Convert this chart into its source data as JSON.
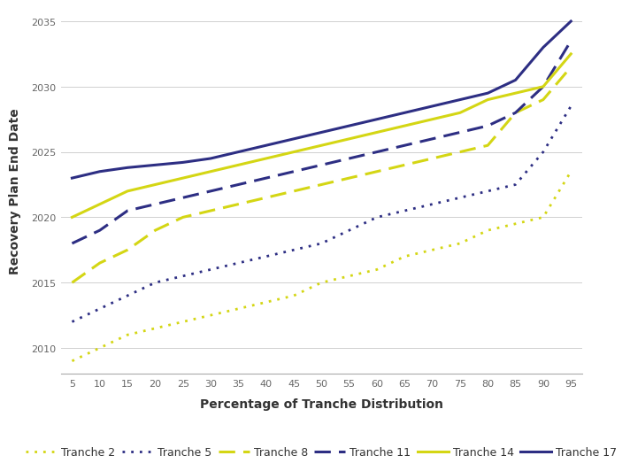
{
  "x": [
    5,
    10,
    15,
    20,
    25,
    30,
    35,
    40,
    45,
    50,
    55,
    60,
    65,
    70,
    75,
    80,
    85,
    90,
    95
  ],
  "tranche2": [
    2009,
    2010,
    2011,
    2011.5,
    2012,
    2012.5,
    2013,
    2013.5,
    2014,
    2015,
    2015.5,
    2016,
    2017,
    2017.5,
    2018,
    2019,
    2019.5,
    2020,
    2023.5
  ],
  "tranche5": [
    2012,
    2013,
    2014,
    2015,
    2015.5,
    2016,
    2016.5,
    2017,
    2017.5,
    2018,
    2019,
    2020,
    2020.5,
    2021,
    2021.5,
    2022,
    2022.5,
    2025,
    2028.5
  ],
  "tranche8": [
    2015,
    2016.5,
    2017.5,
    2019,
    2020,
    2020.5,
    2021,
    2021.5,
    2022,
    2022.5,
    2023,
    2023.5,
    2024,
    2024.5,
    2025,
    2025.5,
    2028,
    2029,
    2031.5
  ],
  "tranche11": [
    2018,
    2019,
    2020.5,
    2021,
    2021.5,
    2022,
    2022.5,
    2023,
    2023.5,
    2024,
    2024.5,
    2025,
    2025.5,
    2026,
    2026.5,
    2027,
    2028,
    2030,
    2033.5
  ],
  "tranche14": [
    2020,
    2021,
    2022,
    2022.5,
    2023,
    2023.5,
    2024,
    2024.5,
    2025,
    2025.5,
    2026,
    2026.5,
    2027,
    2027.5,
    2028,
    2029,
    2029.5,
    2030,
    2032.5
  ],
  "tranche17": [
    2023,
    2023.5,
    2023.8,
    2024,
    2024.2,
    2024.5,
    2025,
    2025.5,
    2026,
    2026.5,
    2027,
    2027.5,
    2028,
    2028.5,
    2029,
    2029.5,
    2030.5,
    2033,
    2035
  ],
  "colors": {
    "yellow": "#d4d614",
    "navy": "#2d2e83"
  },
  "xlabel": "Percentage of Tranche Distribution",
  "ylabel": "Recovery Plan End Date",
  "ylim_min": 2008,
  "ylim_max": 2036,
  "yticks": [
    2010,
    2015,
    2020,
    2025,
    2030,
    2035
  ],
  "xticks": [
    5,
    10,
    15,
    20,
    25,
    30,
    35,
    40,
    45,
    50,
    55,
    60,
    65,
    70,
    75,
    80,
    85,
    90,
    95
  ],
  "legend_labels": [
    "Tranche 2",
    "Tranche 5",
    "Tranche 8",
    "Tranche 11",
    "Tranche 14",
    "Tranche 17"
  ],
  "background_color": "#ffffff",
  "grid_color": "#d0d0d0"
}
